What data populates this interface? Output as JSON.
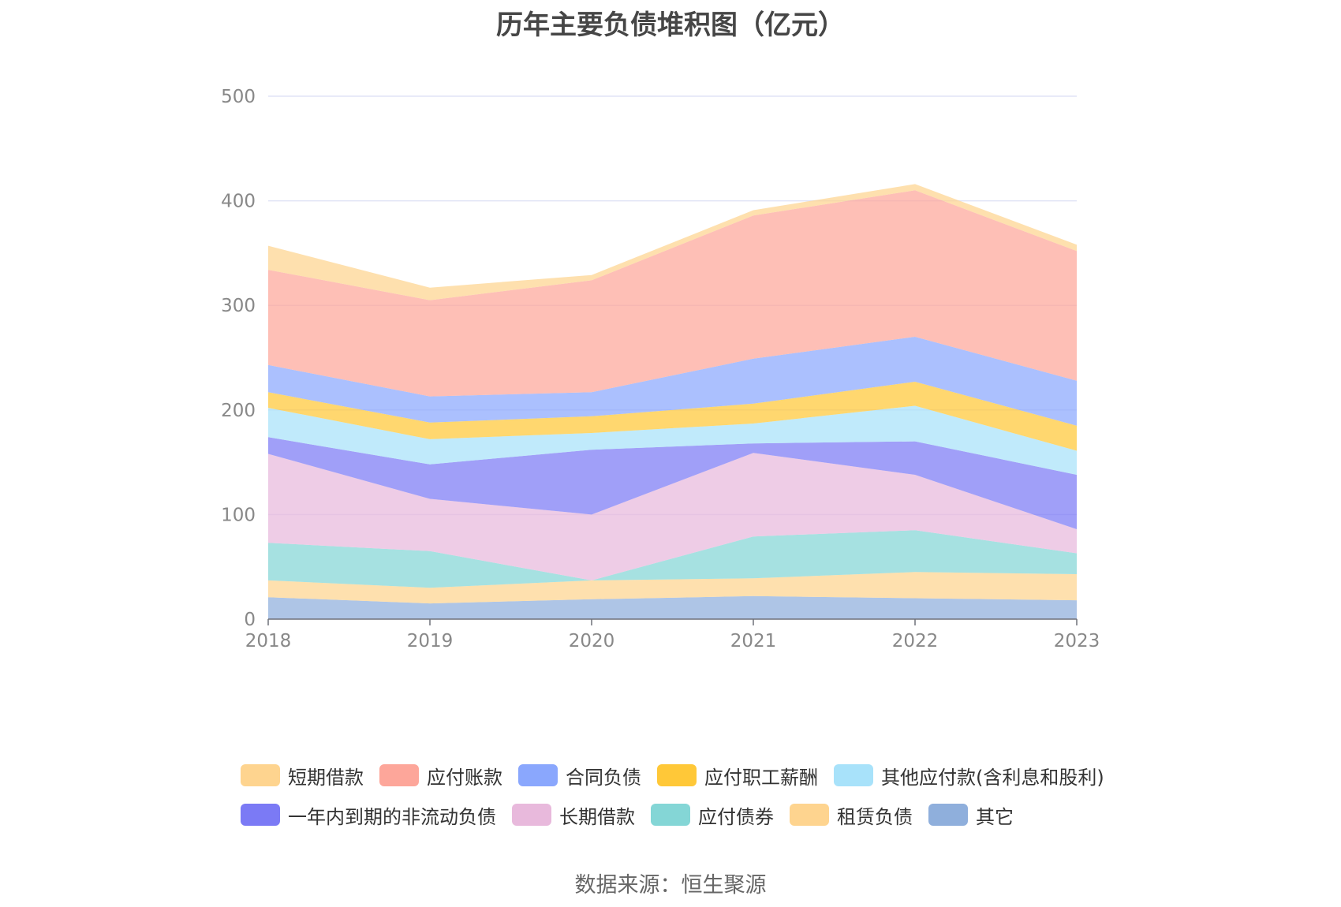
{
  "title": "历年主要负债堆积图（亿元）",
  "source": "数据来源：恒生聚源",
  "chart_data": {
    "type": "area",
    "stacked": true,
    "categories": [
      "2018",
      "2019",
      "2020",
      "2021",
      "2022",
      "2023"
    ],
    "ylim": [
      0,
      500
    ],
    "yticks": [
      "0",
      "100",
      "200",
      "300",
      "400",
      "500"
    ],
    "grid": true,
    "legend_position": "bottom",
    "series": [
      {
        "name": "其它",
        "color": "#8fafdc",
        "values": [
          21,
          15,
          19,
          22,
          20,
          18
        ]
      },
      {
        "name": "租赁负债",
        "color": "#fed48f",
        "values": [
          16,
          15,
          18,
          17,
          25,
          25
        ]
      },
      {
        "name": "应付债券",
        "color": "#84d6d6",
        "values": [
          36,
          35,
          0,
          40,
          40,
          20
        ]
      },
      {
        "name": "长期借款",
        "color": "#e8b9dc",
        "values": [
          85,
          50,
          63,
          80,
          53,
          23
        ]
      },
      {
        "name": "一年内到期的非流动负债",
        "color": "#7b7af5",
        "values": [
          16,
          33,
          62,
          9,
          32,
          52
        ]
      },
      {
        "name": "其他应付款(含利息和股利)",
        "color": "#a8e2fa",
        "values": [
          28,
          24,
          16,
          19,
          34,
          23
        ]
      },
      {
        "name": "应付职工薪酬",
        "color": "#ffc838",
        "values": [
          15,
          16,
          16,
          19,
          23,
          24
        ]
      },
      {
        "name": "合同负债",
        "color": "#8aa7fd",
        "values": [
          26,
          25,
          23,
          43,
          43,
          43
        ]
      },
      {
        "name": "应付账款",
        "color": "#fda69a",
        "values": [
          91,
          92,
          107,
          137,
          140,
          124
        ]
      },
      {
        "name": "短期借款",
        "color": "#fed48f",
        "values": [
          23,
          12,
          5,
          5,
          6,
          6
        ]
      }
    ],
    "legend_rows": [
      [
        "短期借款",
        "应付账款",
        "合同负债",
        "应付职工薪酬",
        "其他应付款(含利息和股利)"
      ],
      [
        "一年内到期的非流动负债",
        "长期借款",
        "应付债券",
        "租赁负债",
        "其它"
      ]
    ]
  }
}
